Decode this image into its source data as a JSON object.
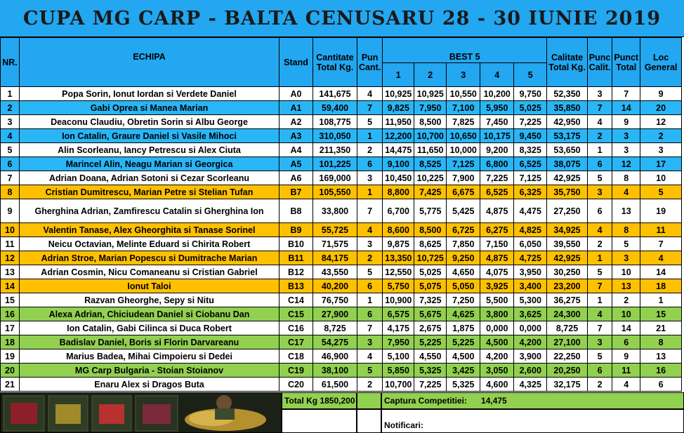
{
  "title": "CUPA MG CARP - BALTA CENUSARU 28 - 30 IUNIE 2019",
  "headers": {
    "nr": "NR.",
    "team": "ECHIPA",
    "stand": "Stand",
    "total_kg_1": "Cantitate",
    "total_kg_2": "Total Kg.",
    "pun_cant_1": "Pun",
    "pun_cant_2": "Cant.",
    "best5": "BEST 5",
    "best_cols": [
      "1",
      "2",
      "3",
      "4",
      "5"
    ],
    "calit_1": "Calitate",
    "calit_2": "Total Kg.",
    "punc_calit_1": "Punc",
    "punc_calit_2": "Calit.",
    "punct_total_1": "Punct",
    "punct_total_2": "Total",
    "loc_1": "Loc",
    "loc_2": "General"
  },
  "colors": {
    "title_bg": "#22a7f0",
    "blue_row": "#29b6f6",
    "orange_row": "#ffc000",
    "green_row": "#92d050"
  },
  "rows": [
    {
      "nr": "1",
      "team": "Popa Sorin, Ionut Iordan si Verdete Daniel",
      "stand": "A0",
      "total": "141,675",
      "pun_cant": "4",
      "best": [
        "10,925",
        "10,925",
        "10,550",
        "10,200",
        "9,750"
      ],
      "calit": "52,350",
      "punc_calit": "3",
      "punct_total": "7",
      "loc": "9",
      "color": "white"
    },
    {
      "nr": "2",
      "team": "Gabi Oprea si Manea Marian",
      "stand": "A1",
      "total": "59,400",
      "pun_cant": "7",
      "best": [
        "9,825",
        "7,950",
        "7,100",
        "5,950",
        "5,025"
      ],
      "calit": "35,850",
      "punc_calit": "7",
      "punct_total": "14",
      "loc": "20",
      "color": "blue"
    },
    {
      "nr": "3",
      "team": "Deaconu Claudiu, Obretin Sorin si Albu George",
      "stand": "A2",
      "total": "108,775",
      "pun_cant": "5",
      "best": [
        "11,950",
        "8,500",
        "7,825",
        "7,450",
        "7,225"
      ],
      "calit": "42,950",
      "punc_calit": "4",
      "punct_total": "9",
      "loc": "12",
      "color": "white"
    },
    {
      "nr": "4",
      "team": "Ion Catalin, Graure Daniel si Vasile Mihoci",
      "stand": "A3",
      "total": "310,050",
      "pun_cant": "1",
      "best": [
        "12,200",
        "10,700",
        "10,650",
        "10,175",
        "9,450"
      ],
      "calit": "53,175",
      "punc_calit": "2",
      "punct_total": "3",
      "loc": "2",
      "color": "blue"
    },
    {
      "nr": "5",
      "team": "Alin Scorleanu, Iancy Petrescu si Alex Ciuta",
      "stand": "A4",
      "total": "211,350",
      "pun_cant": "2",
      "best": [
        "14,475",
        "11,650",
        "10,000",
        "9,200",
        "8,325"
      ],
      "calit": "53,650",
      "punc_calit": "1",
      "punct_total": "3",
      "loc": "3",
      "color": "white"
    },
    {
      "nr": "6",
      "team": "Marincel Alin, Neagu Marian si Georgica",
      "stand": "A5",
      "total": "101,225",
      "pun_cant": "6",
      "best": [
        "9,100",
        "8,525",
        "7,125",
        "6,800",
        "6,525"
      ],
      "calit": "38,075",
      "punc_calit": "6",
      "punct_total": "12",
      "loc": "17",
      "color": "blue"
    },
    {
      "nr": "7",
      "team": "Adrian Doana, Adrian Sotoni si Cezar Scorleanu",
      "stand": "A6",
      "total": "169,000",
      "pun_cant": "3",
      "best": [
        "10,450",
        "10,225",
        "7,900",
        "7,225",
        "7,125"
      ],
      "calit": "42,925",
      "punc_calit": "5",
      "punct_total": "8",
      "loc": "10",
      "color": "white"
    },
    {
      "nr": "8",
      "team": "Cristian Dumitrescu, Marian Petre si Stelian Tufan",
      "stand": "B7",
      "total": "105,550",
      "pun_cant": "1",
      "best": [
        "8,800",
        "7,425",
        "6,675",
        "6,525",
        "6,325"
      ],
      "calit": "35,750",
      "punc_calit": "3",
      "punct_total": "4",
      "loc": "5",
      "color": "orange"
    },
    {
      "nr": "9",
      "team": "Gherghina Adrian, Zamfirescu Catalin si Gherghina Ion",
      "stand": "B8",
      "total": "33,800",
      "pun_cant": "7",
      "best": [
        "6,700",
        "5,775",
        "5,425",
        "4,875",
        "4,475"
      ],
      "calit": "27,250",
      "punc_calit": "6",
      "punct_total": "13",
      "loc": "19",
      "color": "white",
      "tall": true
    },
    {
      "nr": "10",
      "team": "Valentin Tanase, Alex Gheorghita si Tanase Sorinel",
      "stand": "B9",
      "total": "55,725",
      "pun_cant": "4",
      "best": [
        "8,600",
        "8,500",
        "6,725",
        "6,275",
        "4,825"
      ],
      "calit": "34,925",
      "punc_calit": "4",
      "punct_total": "8",
      "loc": "11",
      "color": "orange"
    },
    {
      "nr": "11",
      "team": "Neicu Octavian, Melinte Eduard si Chirita Robert",
      "stand": "B10",
      "total": "71,575",
      "pun_cant": "3",
      "best": [
        "9,875",
        "8,625",
        "7,850",
        "7,150",
        "6,050"
      ],
      "calit": "39,550",
      "punc_calit": "2",
      "punct_total": "5",
      "loc": "7",
      "color": "white"
    },
    {
      "nr": "12",
      "team": "Adrian Stroe, Marian Popescu si Dumitrache Marian",
      "stand": "B11",
      "total": "84,175",
      "pun_cant": "2",
      "best": [
        "13,350",
        "10,725",
        "9,250",
        "4,875",
        "4,725"
      ],
      "calit": "42,925",
      "punc_calit": "1",
      "punct_total": "3",
      "loc": "4",
      "color": "orange"
    },
    {
      "nr": "13",
      "team": "Adrian Cosmin, Nicu Comaneanu si Cristian Gabriel",
      "stand": "B12",
      "total": "43,550",
      "pun_cant": "5",
      "best": [
        "12,550",
        "5,025",
        "4,650",
        "4,075",
        "3,950"
      ],
      "calit": "30,250",
      "punc_calit": "5",
      "punct_total": "10",
      "loc": "14",
      "color": "white"
    },
    {
      "nr": "14",
      "team": "Ionut Taloi",
      "stand": "B13",
      "total": "40,200",
      "pun_cant": "6",
      "best": [
        "5,750",
        "5,075",
        "5,050",
        "3,925",
        "3,400"
      ],
      "calit": "23,200",
      "punc_calit": "7",
      "punct_total": "13",
      "loc": "18",
      "color": "orange"
    },
    {
      "nr": "15",
      "team": "Razvan Gheorghe, Sepy si Nitu",
      "stand": "C14",
      "total": "76,750",
      "pun_cant": "1",
      "best": [
        "10,900",
        "7,325",
        "7,250",
        "5,500",
        "5,300"
      ],
      "calit": "36,275",
      "punc_calit": "1",
      "punct_total": "2",
      "loc": "1",
      "color": "white"
    },
    {
      "nr": "16",
      "team": "Alexa Adrian, Chiciudean Daniel si Ciobanu Dan",
      "stand": "C15",
      "total": "27,900",
      "pun_cant": "6",
      "best": [
        "6,575",
        "5,675",
        "4,625",
        "3,800",
        "3,625"
      ],
      "calit": "24,300",
      "punc_calit": "4",
      "punct_total": "10",
      "loc": "15",
      "color": "green"
    },
    {
      "nr": "17",
      "team": "Ion Catalin, Gabi Cilinca si Duca Robert",
      "stand": "C16",
      "total": "8,725",
      "pun_cant": "7",
      "best": [
        "4,175",
        "2,675",
        "1,875",
        "0,000",
        "0,000"
      ],
      "calit": "8,725",
      "punc_calit": "7",
      "punct_total": "14",
      "loc": "21",
      "color": "white"
    },
    {
      "nr": "18",
      "team": "Badislav Daniel, Boris si Florin Darvareanu",
      "stand": "C17",
      "total": "54,275",
      "pun_cant": "3",
      "best": [
        "7,950",
        "5,225",
        "5,225",
        "4,500",
        "4,200"
      ],
      "calit": "27,100",
      "punc_calit": "3",
      "punct_total": "6",
      "loc": "8",
      "color": "green"
    },
    {
      "nr": "19",
      "team": "Marius Badea, Mihai Cimpoieru si Dedei",
      "stand": "C18",
      "total": "46,900",
      "pun_cant": "4",
      "best": [
        "5,100",
        "4,550",
        "4,500",
        "4,200",
        "3,900"
      ],
      "calit": "22,250",
      "punc_calit": "5",
      "punct_total": "9",
      "loc": "13",
      "color": "white"
    },
    {
      "nr": "20",
      "team": "MG Carp Bulgaria - Stoian Stoianov",
      "stand": "C19",
      "total": "38,100",
      "pun_cant": "5",
      "best": [
        "5,850",
        "5,325",
        "3,425",
        "3,050",
        "2,600"
      ],
      "calit": "20,250",
      "punc_calit": "6",
      "punct_total": "11",
      "loc": "16",
      "color": "green"
    },
    {
      "nr": "21",
      "team": "Enaru Alex si Dragos Buta",
      "stand": "C20",
      "total": "61,500",
      "pun_cant": "2",
      "best": [
        "10,700",
        "7,225",
        "5,325",
        "4,600",
        "4,325"
      ],
      "calit": "32,175",
      "punc_calit": "2",
      "punct_total": "4",
      "loc": "6",
      "color": "white"
    }
  ],
  "footer": {
    "total_label": "Total Kg",
    "total_value": "1850,200",
    "captura_label": "Captura Competitiei:",
    "captura_value": "14,475",
    "notificari_label": "Notificari:"
  }
}
